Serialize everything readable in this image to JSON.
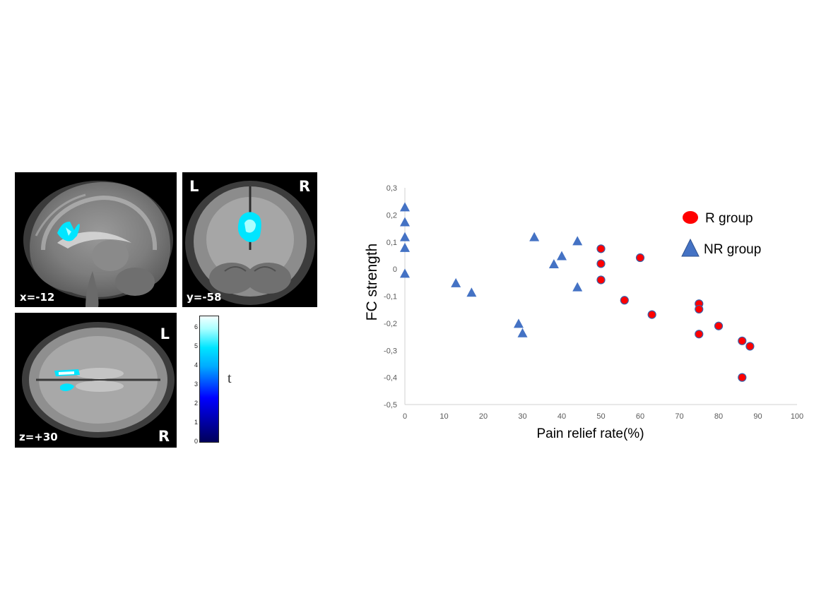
{
  "brain_panels": {
    "sagittal": {
      "coord": "x=-12"
    },
    "coronal": {
      "coord": "y=-58",
      "left_label": "L",
      "right_label": "R"
    },
    "axial": {
      "coord": "z=+30",
      "left_label": "L",
      "right_label": "R"
    }
  },
  "colorbar": {
    "ticks": [
      "0",
      "1",
      "2",
      "3",
      "4",
      "5",
      "6"
    ],
    "unit": "t",
    "colors": [
      "#00005a",
      "#0000ff",
      "#00aaff",
      "#00e5ff",
      "#aaffff",
      "#f2ffff"
    ]
  },
  "chart_data": {
    "type": "scatter",
    "xlabel": "Pain relief rate(%)",
    "ylabel": "FC strength",
    "xlim": [
      0,
      100
    ],
    "ylim": [
      -0.5,
      0.3
    ],
    "x_ticks": [
      "0",
      "10",
      "20",
      "30",
      "40",
      "50",
      "60",
      "70",
      "80",
      "90",
      "100"
    ],
    "y_ticks": [
      "0,3",
      "0,2",
      "0,1",
      "0",
      "-0,1",
      "-0,2",
      "-0,3",
      "-0,4",
      "-0,5"
    ],
    "grid": false,
    "legend_position": "top-right",
    "series": [
      {
        "name": "R group",
        "marker": "circle",
        "color": "#ff0000",
        "edge_color": "#3a5fa8",
        "points": [
          [
            50,
            0.075
          ],
          [
            50,
            0.02
          ],
          [
            50,
            -0.04
          ],
          [
            60,
            0.042
          ],
          [
            56,
            -0.115
          ],
          [
            63,
            -0.168
          ],
          [
            75,
            -0.128
          ],
          [
            75,
            -0.148
          ],
          [
            75,
            -0.24
          ],
          [
            80,
            -0.21
          ],
          [
            86,
            -0.265
          ],
          [
            88,
            -0.285
          ],
          [
            86,
            -0.4
          ]
        ]
      },
      {
        "name": "NR group",
        "marker": "triangle",
        "color": "#4472c4",
        "points": [
          [
            0,
            0.23
          ],
          [
            0,
            0.175
          ],
          [
            0,
            0.12
          ],
          [
            0,
            0.08
          ],
          [
            0,
            -0.015
          ],
          [
            13,
            -0.05
          ],
          [
            17,
            -0.085
          ],
          [
            29,
            -0.2
          ],
          [
            30,
            -0.235
          ],
          [
            33,
            0.12
          ],
          [
            38,
            0.02
          ],
          [
            40,
            0.05
          ],
          [
            44,
            0.105
          ],
          [
            44,
            -0.065
          ]
        ]
      }
    ]
  }
}
